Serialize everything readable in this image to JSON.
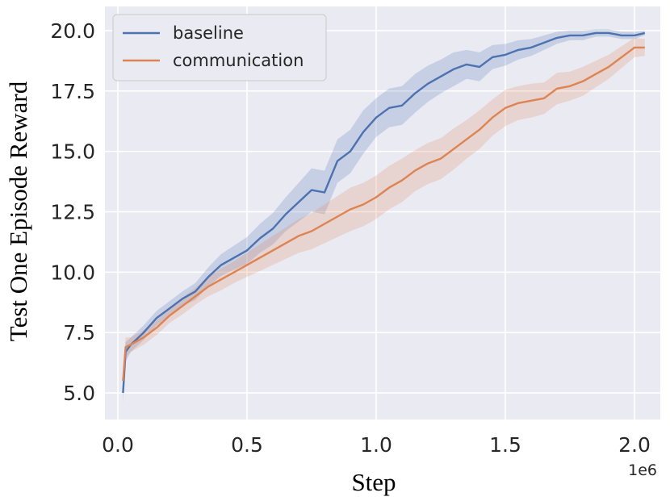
{
  "chart_data": {
    "type": "line",
    "title": "",
    "xlabel": "Step",
    "ylabel": "Test One Episode Reward",
    "x_offset_label": "1e6",
    "xlim": [
      -0.05,
      2.1
    ],
    "ylim": [
      3.9,
      21.0
    ],
    "x_ticks": [
      0.0,
      0.5,
      1.0,
      1.5,
      2.0
    ],
    "x_tick_labels": [
      "0.0",
      "0.5",
      "1.0",
      "1.5",
      "2.0"
    ],
    "y_ticks": [
      5.0,
      7.5,
      10.0,
      12.5,
      15.0,
      17.5,
      20.0
    ],
    "y_tick_labels": [
      "5.0",
      "7.5",
      "10.0",
      "12.5",
      "15.0",
      "17.5",
      "20.0"
    ],
    "grid": true,
    "legend_position": "top-left",
    "series": [
      {
        "name": "baseline",
        "color": "#4c72b0",
        "x": [
          0.02,
          0.03,
          0.05,
          0.1,
          0.15,
          0.2,
          0.25,
          0.3,
          0.35,
          0.4,
          0.45,
          0.5,
          0.55,
          0.6,
          0.65,
          0.7,
          0.75,
          0.8,
          0.85,
          0.9,
          0.95,
          1.0,
          1.05,
          1.1,
          1.15,
          1.2,
          1.25,
          1.3,
          1.35,
          1.4,
          1.45,
          1.5,
          1.55,
          1.6,
          1.65,
          1.7,
          1.75,
          1.8,
          1.85,
          1.9,
          1.95,
          2.0,
          2.04
        ],
        "y": [
          5.0,
          6.7,
          7.0,
          7.5,
          8.1,
          8.5,
          8.9,
          9.2,
          9.8,
          10.3,
          10.6,
          10.9,
          11.4,
          11.8,
          12.4,
          12.9,
          13.4,
          13.3,
          14.6,
          15.0,
          15.8,
          16.4,
          16.8,
          16.9,
          17.4,
          17.8,
          18.1,
          18.4,
          18.6,
          18.5,
          18.9,
          19.0,
          19.2,
          19.3,
          19.5,
          19.7,
          19.8,
          19.8,
          19.9,
          19.9,
          19.8,
          19.8,
          19.9
        ],
        "band": [
          0.4,
          0.4,
          0.3,
          0.3,
          0.3,
          0.3,
          0.3,
          0.35,
          0.4,
          0.45,
          0.5,
          0.55,
          0.6,
          0.65,
          0.7,
          0.8,
          0.9,
          0.9,
          0.9,
          0.9,
          0.9,
          0.8,
          0.8,
          0.8,
          0.8,
          0.75,
          0.7,
          0.7,
          0.6,
          0.6,
          0.5,
          0.45,
          0.4,
          0.35,
          0.3,
          0.25,
          0.2,
          0.2,
          0.15,
          0.15,
          0.15,
          0.15,
          0.1
        ]
      },
      {
        "name": "communication",
        "color": "#dd8452",
        "x": [
          0.02,
          0.03,
          0.05,
          0.1,
          0.15,
          0.2,
          0.25,
          0.3,
          0.35,
          0.4,
          0.45,
          0.5,
          0.55,
          0.6,
          0.65,
          0.7,
          0.75,
          0.8,
          0.85,
          0.9,
          0.95,
          1.0,
          1.05,
          1.1,
          1.15,
          1.2,
          1.25,
          1.3,
          1.35,
          1.4,
          1.45,
          1.5,
          1.55,
          1.6,
          1.65,
          1.7,
          1.75,
          1.8,
          1.85,
          1.9,
          1.95,
          2.0,
          2.04
        ],
        "y": [
          5.5,
          6.9,
          7.0,
          7.3,
          7.7,
          8.2,
          8.6,
          9.0,
          9.4,
          9.7,
          10.0,
          10.3,
          10.6,
          10.9,
          11.2,
          11.5,
          11.7,
          12.0,
          12.3,
          12.6,
          12.8,
          13.1,
          13.5,
          13.8,
          14.2,
          14.5,
          14.7,
          15.1,
          15.5,
          15.9,
          16.4,
          16.8,
          17.0,
          17.1,
          17.2,
          17.6,
          17.7,
          17.9,
          18.2,
          18.5,
          18.9,
          19.3,
          19.3
        ],
        "band": [
          0.4,
          0.4,
          0.3,
          0.3,
          0.3,
          0.3,
          0.35,
          0.35,
          0.4,
          0.45,
          0.45,
          0.5,
          0.55,
          0.6,
          0.65,
          0.7,
          0.75,
          0.8,
          0.85,
          0.9,
          0.9,
          0.9,
          0.9,
          0.9,
          0.85,
          0.85,
          0.85,
          0.85,
          0.8,
          0.8,
          0.75,
          0.75,
          0.7,
          0.7,
          0.65,
          0.65,
          0.6,
          0.6,
          0.55,
          0.5,
          0.45,
          0.4,
          0.35
        ]
      }
    ]
  }
}
